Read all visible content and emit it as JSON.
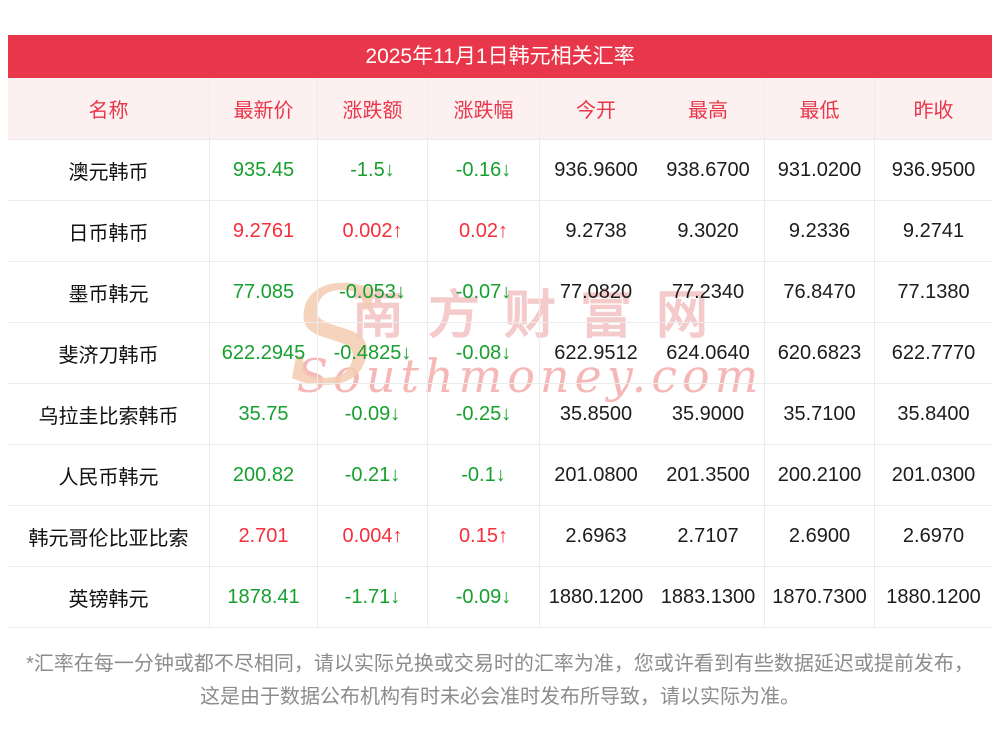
{
  "title": "2025年11月1日韩元相关汇率",
  "colors": {
    "accent": "#e8374a",
    "up": "#f5303d",
    "down": "#17a02e",
    "header_bg": "#fdf0f0"
  },
  "chart_data": {
    "type": "table",
    "title": "2025年11月1日韩元相关汇率",
    "columns": [
      "名称",
      "最新价",
      "涨跌额",
      "涨跌幅",
      "今开",
      "最高",
      "最低",
      "昨收"
    ],
    "rows": [
      {
        "name": "澳元韩币",
        "latest": "935.45",
        "change": "-1.5↓",
        "change_pct": "-0.16↓",
        "open": "936.9600",
        "high": "938.6700",
        "low": "931.0200",
        "prev_close": "936.9500",
        "trend": "down"
      },
      {
        "name": "日币韩币",
        "latest": "9.2761",
        "change": "0.002↑",
        "change_pct": "0.02↑",
        "open": "9.2738",
        "high": "9.3020",
        "low": "9.2336",
        "prev_close": "9.2741",
        "trend": "up"
      },
      {
        "name": "墨币韩元",
        "latest": "77.085",
        "change": "-0.053↓",
        "change_pct": "-0.07↓",
        "open": "77.0820",
        "high": "77.2340",
        "low": "76.8470",
        "prev_close": "77.1380",
        "trend": "down"
      },
      {
        "name": "斐济刀韩币",
        "latest": "622.2945",
        "change": "-0.4825↓",
        "change_pct": "-0.08↓",
        "open": "622.9512",
        "high": "624.0640",
        "low": "620.6823",
        "prev_close": "622.7770",
        "trend": "down"
      },
      {
        "name": "乌拉圭比索韩币",
        "latest": "35.75",
        "change": "-0.09↓",
        "change_pct": "-0.25↓",
        "open": "35.8500",
        "high": "35.9000",
        "low": "35.7100",
        "prev_close": "35.8400",
        "trend": "down"
      },
      {
        "name": "人民币韩元",
        "latest": "200.82",
        "change": "-0.21↓",
        "change_pct": "-0.1↓",
        "open": "201.0800",
        "high": "201.3500",
        "low": "200.2100",
        "prev_close": "201.0300",
        "trend": "down"
      },
      {
        "name": "韩元哥伦比亚比索",
        "latest": "2.701",
        "change": "0.004↑",
        "change_pct": "0.15↑",
        "open": "2.6963",
        "high": "2.7107",
        "low": "2.6900",
        "prev_close": "2.6970",
        "trend": "up"
      },
      {
        "name": "英镑韩元",
        "latest": "1878.41",
        "change": "-1.71↓",
        "change_pct": "-0.09↓",
        "open": "1880.1200",
        "high": "1883.1300",
        "low": "1870.7300",
        "prev_close": "1880.1200",
        "trend": "down"
      }
    ]
  },
  "watermark": {
    "logo": "S",
    "cn": "南方财富网",
    "en": "Southmoney.com"
  },
  "footnote": "*汇率在每一分钟或都不尽相同，请以实际兑换或交易时的汇率为准，您或许看到有些数据延迟或提前发布，这是由于数据公布机构有时未必会准时发布所导致，请以实际为准。"
}
